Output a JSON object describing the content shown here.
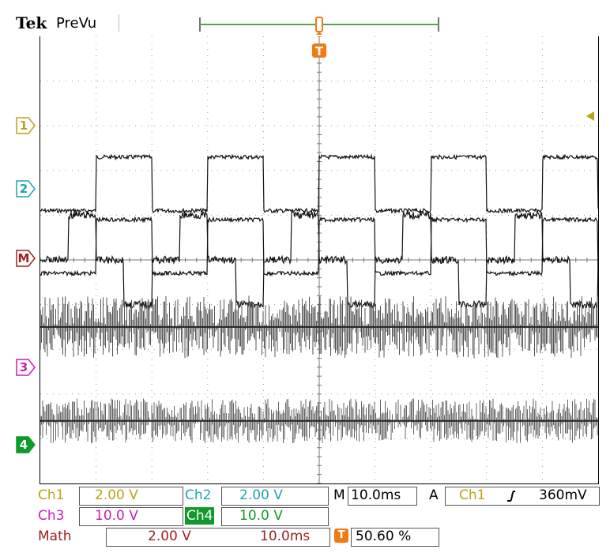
{
  "header": {
    "brand": "Tek",
    "mode": "PreVu"
  },
  "channels": {
    "ch1": {
      "marker": "1",
      "label": "Ch1",
      "scale": "2.00 V",
      "color": "#b8a414"
    },
    "ch2": {
      "marker": "2",
      "label": "Ch2",
      "scale": "2.00 V",
      "color": "#1ea4b4"
    },
    "ch3": {
      "marker": "3",
      "label": "Ch3",
      "scale": "10.0 V",
      "color": "#c81eb4"
    },
    "ch4": {
      "marker": "4",
      "label": "Ch4",
      "scale": "10.0 V",
      "color": "#119a2c"
    },
    "math": {
      "marker": "M",
      "label": "Math",
      "scale": "2.00 V",
      "time": "10.0ms",
      "color": "#a02020"
    }
  },
  "timebase": {
    "prefix": "M",
    "value": "10.0ms"
  },
  "trigger": {
    "prefix": "A",
    "source": "Ch1",
    "slope_icon": "rising-edge-icon",
    "level": "360mV",
    "marker": "T",
    "position": "50.60 %",
    "color": "#f07a14"
  },
  "waveforms": {
    "ch1": {
      "low_div": 3.9,
      "high_div": 2.7,
      "period_div": 2.0,
      "duty": 0.5
    },
    "ch2": {
      "low_div": 5.3,
      "high_div": 4.1,
      "period_div": 2.0,
      "duty": 0.5
    },
    "math": {
      "levels_div": [
        5.0,
        4.0,
        5.0,
        6.0
      ],
      "period_div": 2.0
    },
    "ch3": {
      "center_div": 6.5,
      "spread_div": 0.7
    },
    "ch4": {
      "center_div": 8.6,
      "spread_div": 0.5
    }
  },
  "grid": {
    "h_divisions": 10,
    "v_divisions": 10
  },
  "record_view": {
    "visible_fraction": 0.28,
    "trigger_fraction": 0.5
  }
}
